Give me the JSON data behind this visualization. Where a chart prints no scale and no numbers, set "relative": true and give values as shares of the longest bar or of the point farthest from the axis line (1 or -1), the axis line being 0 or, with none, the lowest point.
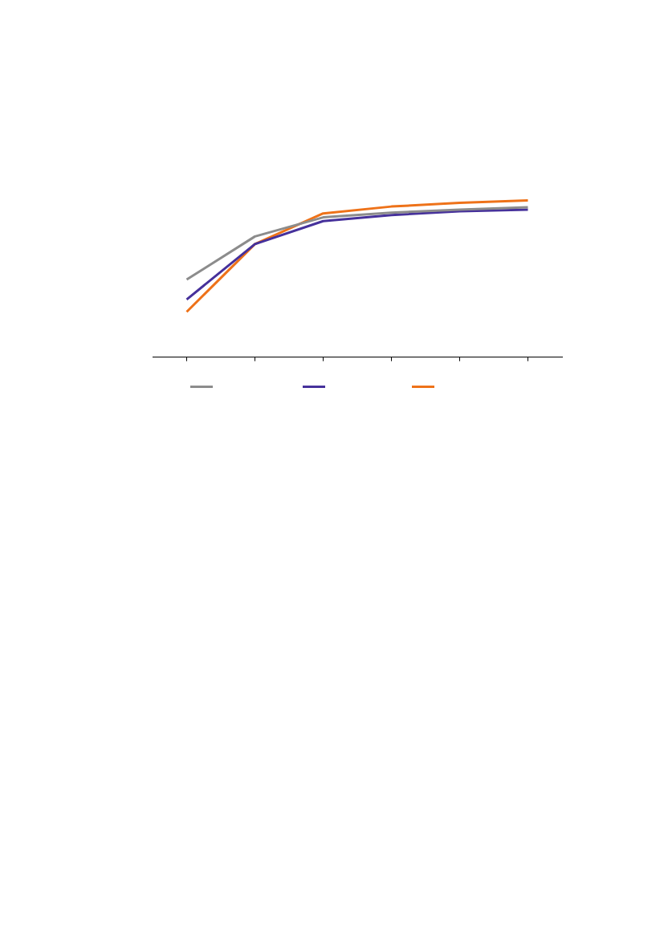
{
  "chart_data": {
    "type": "line",
    "relative": true,
    "categories": [
      null,
      null,
      null,
      null,
      null,
      null
    ],
    "series": [
      {
        "color": "#8c8c8c",
        "values": [
          0.495,
          0.77,
          0.892,
          0.922,
          0.941,
          0.956
        ]
      },
      {
        "color": "#46319b",
        "values": [
          0.368,
          0.721,
          0.868,
          0.907,
          0.931,
          0.941
        ]
      },
      {
        "color": "#ee7219",
        "values": [
          0.289,
          0.721,
          0.917,
          0.961,
          0.985,
          1
        ]
      }
    ],
    "grid": false,
    "marker": "none",
    "line_style": "solid"
  }
}
